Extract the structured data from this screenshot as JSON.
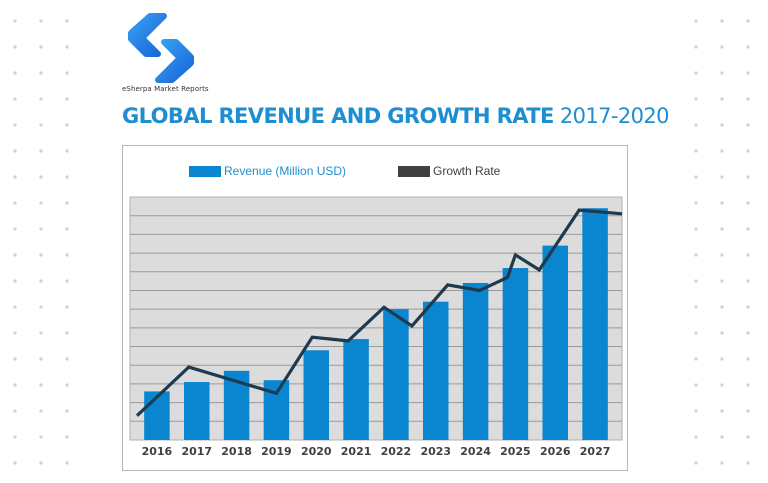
{
  "brand": {
    "name": "eSherpa Market Reports",
    "logo_icon": "esherpa-s-logo-icon"
  },
  "colors": {
    "accent": "#1f8ed1",
    "bar": "#0a86d0",
    "line": "#1e3a4f",
    "plot_bg": "#dcdcdc",
    "grid": "#9a9a9a",
    "dots": "#d0d0d0"
  },
  "chart_data": {
    "type": "bar",
    "title": "GLOBAL REVENUE AND GROWTH RATE",
    "title_suffix": "2017-2020",
    "xlabel": "",
    "ylabel": "",
    "categories": [
      "2016",
      "2017",
      "2018",
      "2019",
      "2020",
      "2021",
      "2022",
      "2023",
      "2024",
      "2025",
      "2026",
      "2027"
    ],
    "ylim": [
      0,
      13
    ],
    "grid": true,
    "y_tick_labels_shown": false,
    "legend_position": "top-center",
    "series": [
      {
        "name": "Revenue (Million USD)",
        "type": "bar",
        "color": "#0a86d0",
        "values": [
          2.6,
          3.1,
          3.7,
          3.2,
          4.8,
          5.4,
          7.0,
          7.4,
          8.4,
          9.2,
          10.4,
          12.4
        ]
      },
      {
        "name": "Growth Rate",
        "type": "line",
        "color": "#1e3a4f",
        "legend_color": "#404040",
        "points": [
          {
            "x": -0.5,
            "y": 1.3
          },
          {
            "x": 0.8,
            "y": 3.9
          },
          {
            "x": 3.0,
            "y": 2.5
          },
          {
            "x": 3.9,
            "y": 5.5
          },
          {
            "x": 4.8,
            "y": 5.3
          },
          {
            "x": 5.7,
            "y": 7.1
          },
          {
            "x": 6.4,
            "y": 6.1
          },
          {
            "x": 7.3,
            "y": 8.3
          },
          {
            "x": 8.1,
            "y": 8.0
          },
          {
            "x": 8.8,
            "y": 8.7
          },
          {
            "x": 9.0,
            "y": 9.9
          },
          {
            "x": 9.6,
            "y": 9.1
          },
          {
            "x": 10.6,
            "y": 12.3
          },
          {
            "x": 11.7,
            "y": 12.1
          }
        ]
      }
    ]
  }
}
